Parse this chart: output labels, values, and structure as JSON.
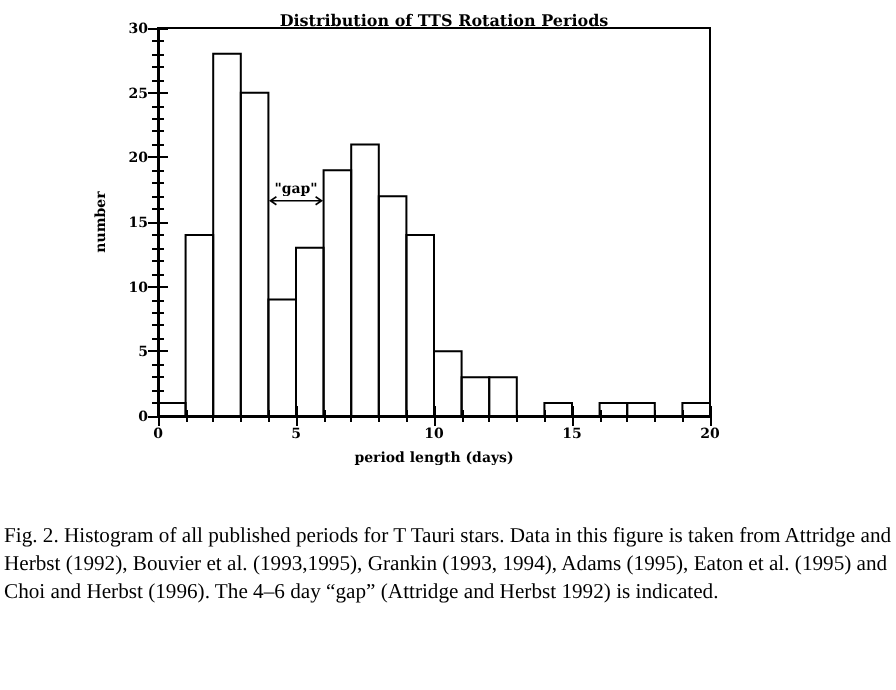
{
  "chart_data": {
    "type": "histogram",
    "title": "Distribution of TTS Rotation Periods",
    "xlabel": "period length (days)",
    "ylabel": "number",
    "bins": [
      0,
      1,
      2,
      3,
      4,
      5,
      6,
      7,
      8,
      9,
      10,
      11,
      12,
      13,
      14,
      15,
      16,
      17,
      18,
      19,
      20
    ],
    "values": [
      1,
      14,
      28,
      25,
      9,
      13,
      19,
      21,
      17,
      14,
      5,
      3,
      3,
      0,
      1,
      0,
      1,
      1,
      0,
      1
    ],
    "color": "#000000",
    "xlim": [
      0,
      20
    ],
    "xticks": [
      0,
      5,
      10,
      15,
      20
    ],
    "ylim": [
      0,
      30
    ],
    "yticks": [
      0,
      5,
      10,
      15,
      20,
      25,
      30
    ],
    "grid": false,
    "annotations": [
      "\"gap\"",
      "Fig. 2.   Histogram of all published periods for T Tauri stars. Data in this figure is taken from Attridge and Herbst (1992), Bouvier et al. (1993,1995), Grankin (1993, 1994), Adams (1995), Eaton et al. (1995) and Choi and Herbst (1996). The 4–6 day “gap” (Attridge and Herbst 1992) is indicated."
    ]
  }
}
